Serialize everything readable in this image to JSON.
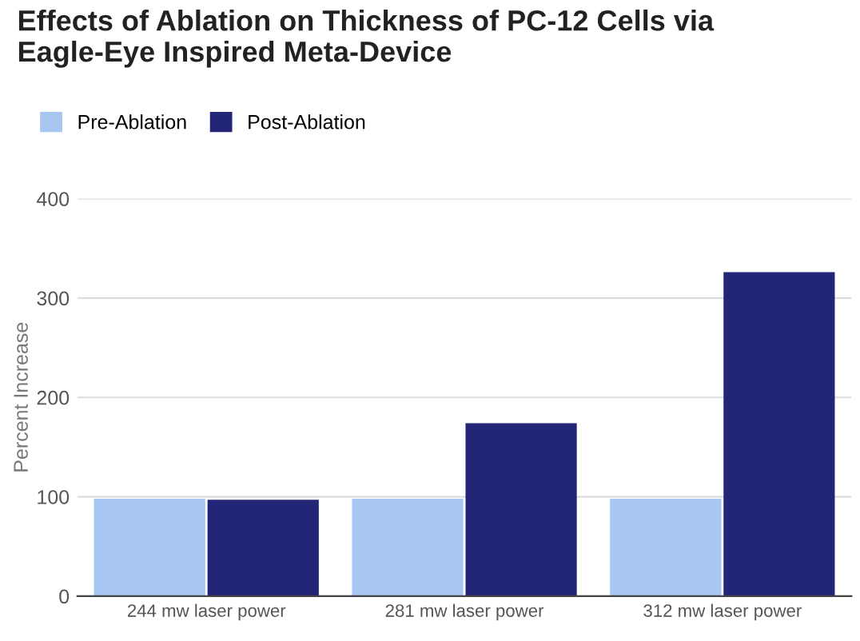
{
  "chart_data": {
    "type": "bar",
    "title": "Effects of Ablation on Thickness of PC-12 Cells via\nEagle-Eye Inspired Meta-Device",
    "ylabel": "Percent Increase",
    "categories": [
      "244 mw laser power",
      "281 mw laser power",
      "312 mw laser power"
    ],
    "series": [
      {
        "name": "Pre-Ablation",
        "color": "#a8c6f2",
        "values": [
          98,
          98,
          98
        ]
      },
      {
        "name": "Post-Ablation",
        "color": "#232577",
        "values": [
          97,
          174,
          326
        ]
      }
    ],
    "ylim": [
      0,
      400
    ],
    "yticks": [
      0,
      100,
      200,
      300,
      400
    ],
    "grid": "y",
    "legend": "top left"
  }
}
